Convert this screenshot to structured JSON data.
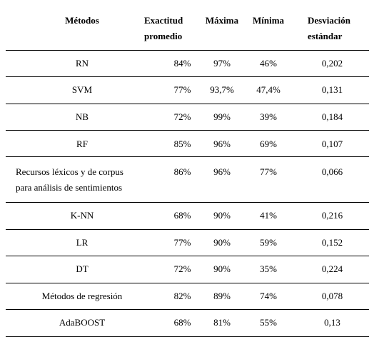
{
  "table": {
    "headers": [
      "Métodos",
      "Exactitud promedio",
      "Máxima",
      "Mínima",
      "Desviación estándar"
    ],
    "header_lines": {
      "c0": [
        "Métodos"
      ],
      "c1": [
        "Exactitud",
        "promedio"
      ],
      "c2": [
        "Máxima"
      ],
      "c3": [
        "Mínima"
      ],
      "c4": [
        "Desviación",
        "estándar"
      ]
    },
    "rows": [
      {
        "method": "RN",
        "avg": "84%",
        "max": "97%",
        "min": "46%",
        "std": "0,202"
      },
      {
        "method": "SVM",
        "avg": "77%",
        "max": "93,7%",
        "min": "47,4%",
        "std": "0,131"
      },
      {
        "method": "NB",
        "avg": "72%",
        "max": "99%",
        "min": "39%",
        "std": "0,184"
      },
      {
        "method": "RF",
        "avg": "85%",
        "max": "96%",
        "min": "69%",
        "std": "0,107"
      },
      {
        "method": "Recursos léxicos y de corpus para análisis de sentimientos",
        "method_lines": [
          "Recursos léxicos y de corpus",
          "para análisis de sentimientos"
        ],
        "avg": "86%",
        "max": "96%",
        "min": "77%",
        "std": "0,066"
      },
      {
        "method": "K-NN",
        "avg": "68%",
        "max": "90%",
        "min": "41%",
        "std": "0,216"
      },
      {
        "method": "LR",
        "avg": "77%",
        "max": "90%",
        "min": "59%",
        "std": "0,152"
      },
      {
        "method": "DT",
        "avg": "72%",
        "max": "90%",
        "min": "35%",
        "std": "0,224"
      },
      {
        "method": "Métodos de regresión",
        "avg": "82%",
        "max": "89%",
        "min": "74%",
        "std": "0,078"
      },
      {
        "method": "AdaBOOST",
        "avg": "68%",
        "max": "81%",
        "min": "55%",
        "std": "0,13"
      }
    ]
  }
}
